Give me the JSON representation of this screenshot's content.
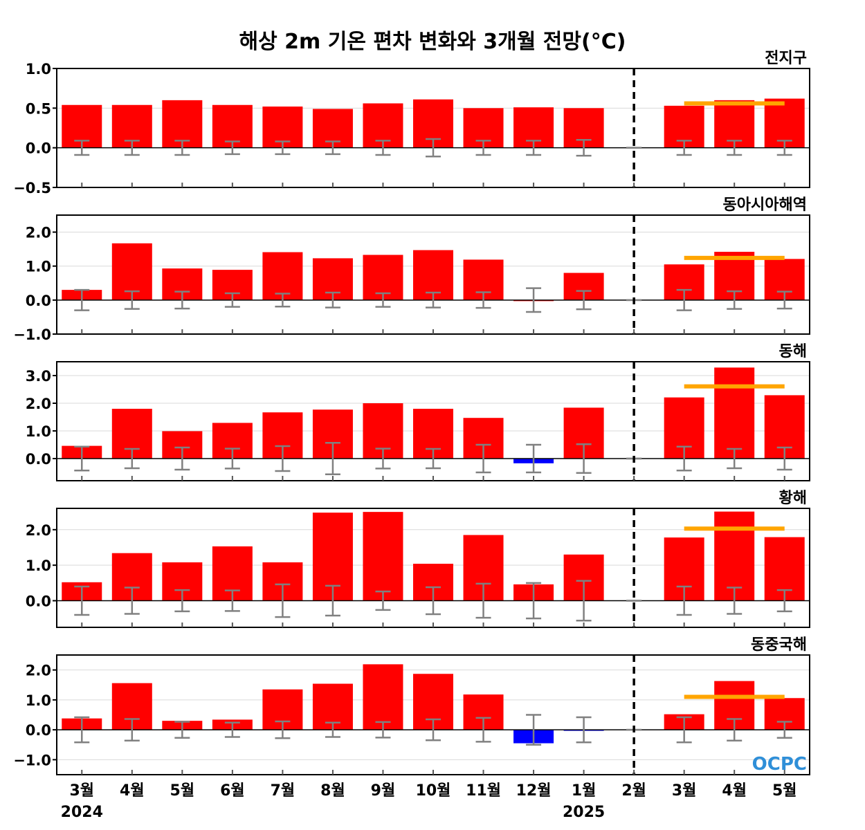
{
  "chart_data": {
    "type": "bar",
    "title": "해상 2m 기온 편차 변화와 3개월 전망(°C)",
    "categories": [
      "3월",
      "4월",
      "5월",
      "6월",
      "7월",
      "8월",
      "9월",
      "10월",
      "11월",
      "12월",
      "1월",
      "2월",
      "3월",
      "4월",
      "5월"
    ],
    "years": [
      {
        "label": "2024",
        "index": 0
      },
      {
        "label": "2025",
        "index": 10
      }
    ],
    "forecast_divider_index": 11,
    "colors": {
      "positive": "#ff0000",
      "negative": "#0000ff",
      "outlook": "#ffa500",
      "error_bar": "#808080",
      "logo": "#2f8fd8"
    },
    "logo_text": "OCPC",
    "panels": [
      {
        "name": "전지구",
        "ylim": [
          -0.5,
          1.0
        ],
        "yticks": [
          -0.5,
          0.0,
          0.5,
          1.0
        ],
        "ytick_labels": [
          "−0.5",
          "0.0",
          "0.5",
          "1.0"
        ],
        "values": [
          0.54,
          0.54,
          0.6,
          0.54,
          0.52,
          0.49,
          0.56,
          0.61,
          0.5,
          0.51,
          0.5,
          null,
          0.53,
          0.6,
          0.62
        ],
        "error": [
          0.09,
          0.09,
          0.09,
          0.08,
          0.08,
          0.08,
          0.09,
          0.11,
          0.09,
          0.09,
          0.1,
          0.0,
          0.09,
          0.09,
          0.09
        ],
        "outlook": {
          "value": 0.56,
          "from_index": 12,
          "to_index": 14
        }
      },
      {
        "name": "동아시아해역",
        "ylim": [
          -1.0,
          2.5
        ],
        "yticks": [
          -1.0,
          0.0,
          1.0,
          2.0
        ],
        "ytick_labels": [
          "−1.0",
          "0.0",
          "1.0",
          "2.0"
        ],
        "values": [
          0.3,
          1.67,
          0.93,
          0.89,
          1.41,
          1.23,
          1.33,
          1.47,
          1.19,
          0.0,
          0.8,
          null,
          1.05,
          1.42,
          1.21
        ],
        "error": [
          0.3,
          0.26,
          0.25,
          0.2,
          0.19,
          0.22,
          0.2,
          0.22,
          0.23,
          0.35,
          0.27,
          0.0,
          0.3,
          0.26,
          0.25
        ],
        "outlook": {
          "value": 1.24,
          "from_index": 12,
          "to_index": 14
        }
      },
      {
        "name": "동해",
        "ylim": [
          -0.8,
          3.5
        ],
        "yticks": [
          0.0,
          1.0,
          2.0,
          3.0
        ],
        "ytick_labels": [
          "0.0",
          "1.0",
          "2.0",
          "3.0"
        ],
        "values": [
          0.46,
          1.8,
          0.99,
          1.29,
          1.67,
          1.77,
          2.0,
          1.8,
          1.47,
          -0.17,
          1.84,
          null,
          2.21,
          3.29,
          2.29
        ],
        "error": [
          0.43,
          0.35,
          0.4,
          0.36,
          0.45,
          0.57,
          0.36,
          0.35,
          0.5,
          0.5,
          0.52,
          0.0,
          0.43,
          0.35,
          0.4
        ],
        "outlook": {
          "value": 2.61,
          "from_index": 12,
          "to_index": 14
        }
      },
      {
        "name": "황해",
        "ylim": [
          -0.75,
          2.6
        ],
        "yticks": [
          0.0,
          1.0,
          2.0
        ],
        "ytick_labels": [
          "0.0",
          "1.0",
          "2.0"
        ],
        "values": [
          0.52,
          1.34,
          1.08,
          1.53,
          1.08,
          2.48,
          2.5,
          1.04,
          1.85,
          0.46,
          1.3,
          null,
          1.78,
          2.51,
          1.79
        ],
        "error": [
          0.4,
          0.37,
          0.3,
          0.29,
          0.46,
          0.42,
          0.26,
          0.38,
          0.48,
          0.5,
          0.56,
          0.0,
          0.4,
          0.37,
          0.3
        ],
        "outlook": {
          "value": 2.03,
          "from_index": 12,
          "to_index": 14
        }
      },
      {
        "name": "동중국해",
        "ylim": [
          -1.5,
          2.5
        ],
        "yticks": [
          -1.0,
          0.0,
          1.0,
          2.0
        ],
        "ytick_labels": [
          "−1.0",
          "0.0",
          "1.0",
          "2.0"
        ],
        "values": [
          0.38,
          1.56,
          0.3,
          0.34,
          1.35,
          1.54,
          2.19,
          1.87,
          1.18,
          -0.45,
          -0.03,
          null,
          0.52,
          1.63,
          1.06
        ],
        "error": [
          0.42,
          0.36,
          0.27,
          0.24,
          0.28,
          0.24,
          0.26,
          0.35,
          0.4,
          0.5,
          0.42,
          0.0,
          0.42,
          0.36,
          0.27
        ],
        "outlook": {
          "value": 1.1,
          "from_index": 12,
          "to_index": 14
        }
      }
    ]
  }
}
